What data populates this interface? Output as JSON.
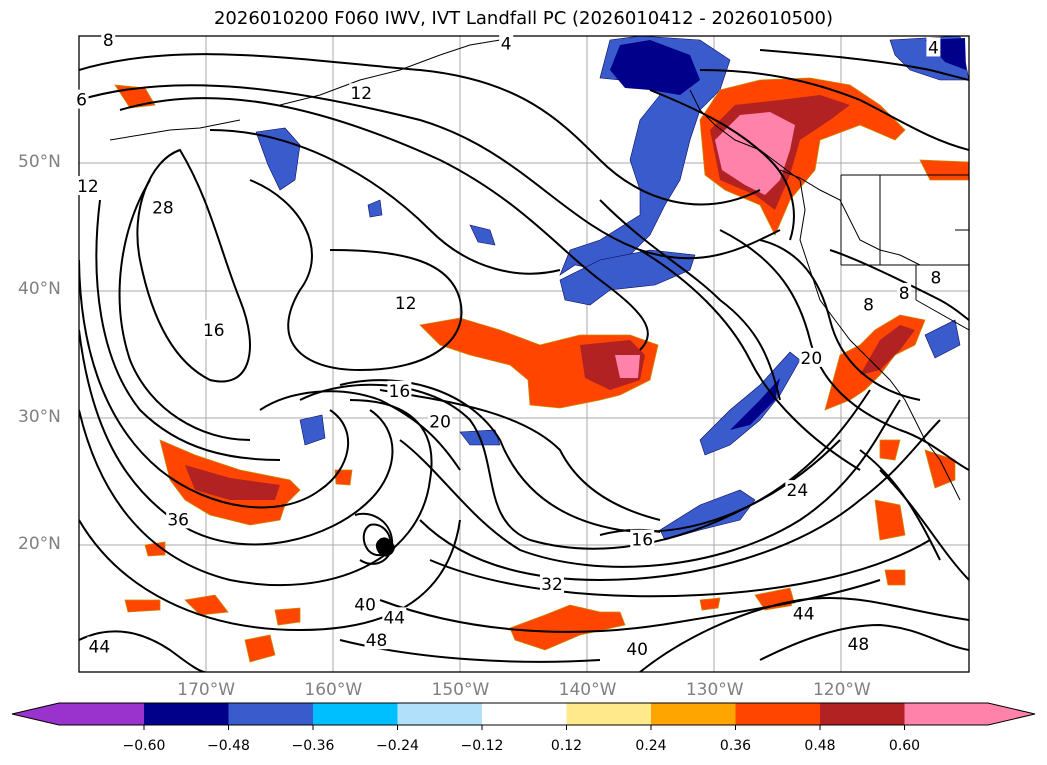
{
  "title": "2026010200 F060 IWV, IVT Landfall PC (2026010412 - 2026010500)",
  "colors": {
    "neg_060": "#9a32cd",
    "neg_048": "#00008b",
    "neg_036": "#3a5bcc",
    "neg_024": "#00bfff",
    "neg_012": "#b0e0fa",
    "neutral": "#ffffff",
    "pos_012": "#ffe98a",
    "pos_024": "#ffa500",
    "pos_036": "#ff4500",
    "pos_048": "#b22222",
    "pos_060": "#ff82ab"
  },
  "map": {
    "lon_range": [
      -180,
      -110
    ],
    "lat_range": [
      10,
      60
    ],
    "lat_labels": [
      {
        "text": "50°N",
        "lat": 50
      },
      {
        "text": "40°N",
        "lat": 40
      },
      {
        "text": "30°N",
        "lat": 30
      },
      {
        "text": "20°N",
        "lat": 20
      }
    ],
    "lon_labels": [
      {
        "text": "170°W",
        "lon": -170
      },
      {
        "text": "160°W",
        "lon": -160
      },
      {
        "text": "150°W",
        "lon": -150
      },
      {
        "text": "140°W",
        "lon": -140
      },
      {
        "text": "130°W",
        "lon": -130
      },
      {
        "text": "120°W",
        "lon": -120
      }
    ],
    "contour_labels": [
      {
        "text": "8",
        "lon": -177.7,
        "lat": 59.7
      },
      {
        "text": "4",
        "lon": -146.4,
        "lat": 59.4
      },
      {
        "text": "4",
        "lon": -112.8,
        "lat": 59.1
      },
      {
        "text": "12",
        "lon": -157.8,
        "lat": 55.5
      },
      {
        "text": "6",
        "lon": -179.8,
        "lat": 55.0
      },
      {
        "text": "12",
        "lon": -179.3,
        "lat": 48.2
      },
      {
        "text": "28",
        "lon": -173.4,
        "lat": 46.5
      },
      {
        "text": "12",
        "lon": -154.3,
        "lat": 39.0
      },
      {
        "text": "16",
        "lon": -169.4,
        "lat": 36.9
      },
      {
        "text": "16",
        "lon": -154.8,
        "lat": 32.1
      },
      {
        "text": "20",
        "lon": -151.6,
        "lat": 29.7
      },
      {
        "text": "20",
        "lon": -122.4,
        "lat": 34.7
      },
      {
        "text": "24",
        "lon": -123.5,
        "lat": 24.3
      },
      {
        "text": "36",
        "lon": -172.2,
        "lat": 22.0
      },
      {
        "text": "16",
        "lon": -135.7,
        "lat": 20.4
      },
      {
        "text": "32",
        "lon": -142.8,
        "lat": 16.9
      },
      {
        "text": "40",
        "lon": -157.5,
        "lat": 15.3
      },
      {
        "text": "44",
        "lon": -155.2,
        "lat": 14.3
      },
      {
        "text": "44",
        "lon": -123.0,
        "lat": 14.6
      },
      {
        "text": "48",
        "lon": -156.6,
        "lat": 12.5
      },
      {
        "text": "48",
        "lon": -118.7,
        "lat": 12.2
      },
      {
        "text": "40",
        "lon": -136.1,
        "lat": 11.8
      },
      {
        "text": "44",
        "lon": -178.4,
        "lat": 12.0
      },
      {
        "text": "8",
        "lon": -117.9,
        "lat": 38.9
      },
      {
        "text": "8",
        "lon": -115.1,
        "lat": 39.8
      },
      {
        "text": "8",
        "lon": -112.6,
        "lat": 41.0
      }
    ]
  },
  "colorbar": {
    "tick_labels": [
      "−0.60",
      "−0.48",
      "−0.36",
      "−0.24",
      "−0.12",
      "0.12",
      "0.24",
      "0.36",
      "0.48",
      "0.60"
    ]
  }
}
